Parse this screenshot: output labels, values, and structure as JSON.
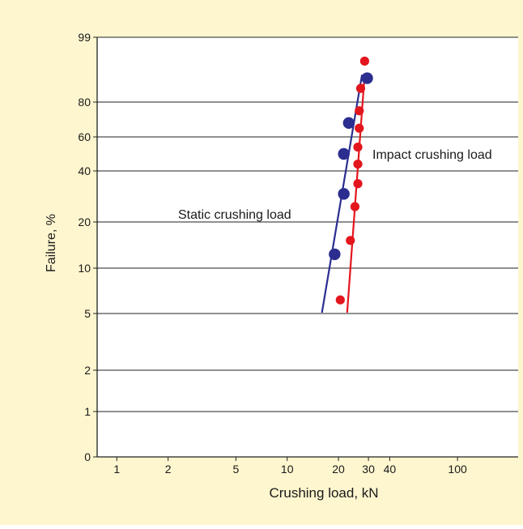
{
  "colors": {
    "background": "#fdf6cf",
    "plot_area": "#ffffff",
    "grid": "#222222",
    "static_series": "#2b2e8f",
    "impact_series": "#e3161d"
  },
  "chart_data": {
    "type": "scatter",
    "title": "",
    "xlabel": "Crushing load, kN",
    "ylabel": "Failure, %",
    "x_scale": "log",
    "y_scale": "probability",
    "xlim": [
      0.7,
      150
    ],
    "x_ticks": [
      1,
      2,
      5,
      10,
      20,
      30,
      40,
      100
    ],
    "x_tick_labels": [
      "1",
      "2",
      "5",
      "10",
      "20",
      "30",
      "40",
      "100"
    ],
    "y_ticks": [
      0,
      1,
      2,
      5,
      10,
      20,
      40,
      60,
      80,
      99
    ],
    "y_tick_labels": [
      "0",
      "1",
      "2",
      "5",
      "10",
      "20",
      "40",
      "60",
      "80",
      "99"
    ],
    "grid": "horizontal",
    "series": [
      {
        "name": "Static crushing load",
        "color": "#2b2e8f",
        "points": [
          {
            "x": 19.0,
            "y": 13
          },
          {
            "x": 21.5,
            "y": 31
          },
          {
            "x": 21.5,
            "y": 50
          },
          {
            "x": 23.0,
            "y": 68
          },
          {
            "x": 29.5,
            "y": 87
          }
        ],
        "fit_line": [
          {
            "x": 16.0,
            "y": 5.1
          },
          {
            "x": 27.5,
            "y": 88
          }
        ]
      },
      {
        "name": "Impact crushing load",
        "color": "#e3161d",
        "points": [
          {
            "x": 20.5,
            "y": 6.5
          },
          {
            "x": 23.5,
            "y": 16
          },
          {
            "x": 25.0,
            "y": 26
          },
          {
            "x": 26.0,
            "y": 35
          },
          {
            "x": 26.0,
            "y": 44
          },
          {
            "x": 26.0,
            "y": 54
          },
          {
            "x": 26.5,
            "y": 65
          },
          {
            "x": 26.5,
            "y": 75
          },
          {
            "x": 27.0,
            "y": 84
          },
          {
            "x": 28.5,
            "y": 92
          }
        ],
        "fit_line": [
          {
            "x": 22.5,
            "y": 5.1
          },
          {
            "x": 28.5,
            "y": 88
          }
        ]
      }
    ],
    "annotations": [
      {
        "text": "Impact crushing load",
        "series": "impact"
      },
      {
        "text": "Static crushing load",
        "series": "static"
      }
    ]
  }
}
